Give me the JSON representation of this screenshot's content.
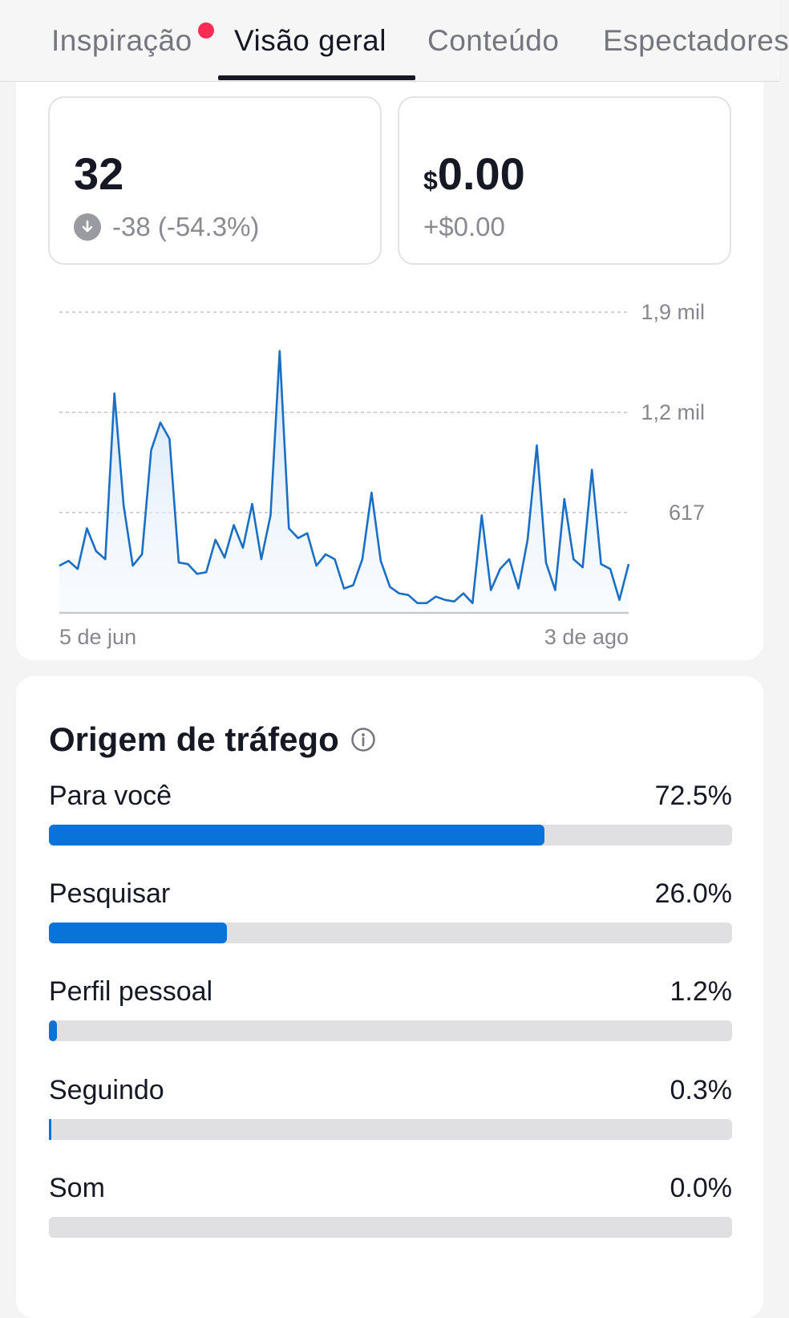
{
  "tabs": [
    {
      "label": "Inspiração",
      "has_notification_dot": true
    },
    {
      "label": "Visão geral",
      "active": true
    },
    {
      "label": "Conteúdo"
    },
    {
      "label": "Espectadores"
    }
  ],
  "stats": {
    "left": {
      "value": "32",
      "change": "-38 (-54.3%)",
      "change_icon": "arrow-down-circle-icon"
    },
    "right": {
      "currency": "$",
      "value": "0.00",
      "change": "+$0.00"
    }
  },
  "chart_data": {
    "type": "area",
    "x_start_label": "5 de jun",
    "x_end_label": "3 de ago",
    "y_tick_labels": [
      "1,9 mil",
      "1,2 mil",
      "617"
    ],
    "y_ticks": [
      1850,
      1233,
      617
    ],
    "ylim": [
      0,
      1850
    ],
    "grid": true,
    "color": "#1a6fc4",
    "values": [
      290,
      320,
      270,
      520,
      380,
      330,
      1350,
      660,
      290,
      360,
      1000,
      1170,
      1070,
      310,
      300,
      240,
      250,
      450,
      340,
      540,
      400,
      670,
      330,
      600,
      1610,
      520,
      460,
      490,
      290,
      360,
      330,
      150,
      170,
      330,
      740,
      320,
      160,
      120,
      110,
      60,
      60,
      100,
      80,
      70,
      120,
      60,
      600,
      140,
      270,
      330,
      150,
      450,
      1030,
      310,
      140,
      700,
      330,
      280,
      880,
      300,
      270,
      80,
      300
    ],
    "note": ""
  },
  "traffic": {
    "title": "Origem de tráfego",
    "info_icon": "info-circle-icon",
    "bar_color": "#0a73d9",
    "track_color": "#e0e0e3",
    "sources": [
      {
        "label": "Para você",
        "value": "72.5%",
        "fraction": 0.725
      },
      {
        "label": "Pesquisar",
        "value": "26.0%",
        "fraction": 0.26
      },
      {
        "label": "Perfil pessoal",
        "value": "1.2%",
        "fraction": 0.012
      },
      {
        "label": "Seguindo",
        "value": "0.3%",
        "fraction": 0.003
      },
      {
        "label": "Som",
        "value": "0.0%",
        "fraction": 0.0
      }
    ]
  }
}
